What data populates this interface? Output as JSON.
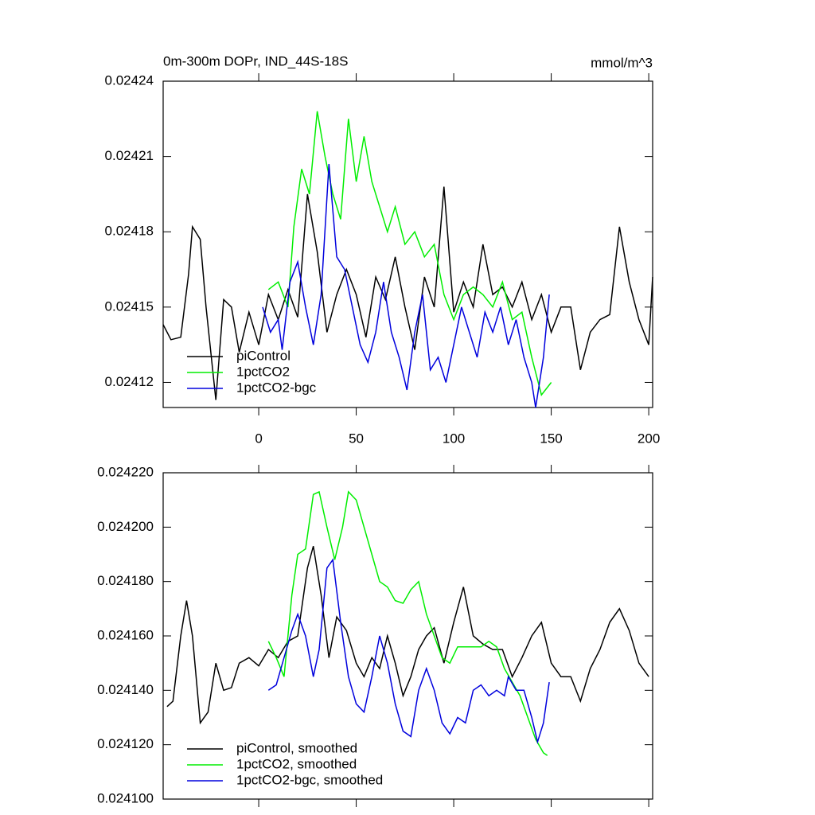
{
  "chart_data": [
    {
      "type": "line",
      "title": "0m-300m DOPr, IND_44S-18S",
      "units": "mmol/m^3",
      "xlim": [
        -49,
        202
      ],
      "xticks": [
        0,
        50,
        100,
        150,
        200
      ],
      "ylim": [
        0.02411,
        0.02424
      ],
      "yticks": [
        0.02412,
        0.02415,
        0.02418,
        0.02421,
        0.02424
      ],
      "legend": "lower left",
      "series": [
        {
          "name": "piControl",
          "color": "#000000",
          "x": [
            -49,
            -45,
            -40,
            -36,
            -34,
            -30,
            -27,
            -22,
            -18,
            -14,
            -10,
            -5,
            0,
            5,
            10,
            15,
            20,
            25,
            30,
            35,
            40,
            45,
            50,
            55,
            60,
            65,
            70,
            75,
            80,
            85,
            90,
            95,
            100,
            105,
            110,
            115,
            120,
            125,
            130,
            135,
            140,
            145,
            150,
            155,
            160,
            165,
            170,
            175,
            180,
            185,
            190,
            195,
            200,
            202
          ],
          "values": [
            0.024143,
            0.024137,
            0.024138,
            0.024163,
            0.024182,
            0.024177,
            0.02415,
            0.024113,
            0.024153,
            0.02415,
            0.024132,
            0.024148,
            0.024135,
            0.024155,
            0.024145,
            0.024157,
            0.024146,
            0.024195,
            0.024172,
            0.02414,
            0.024155,
            0.024165,
            0.024155,
            0.024138,
            0.024162,
            0.024153,
            0.02417,
            0.02415,
            0.024133,
            0.024162,
            0.02415,
            0.024198,
            0.024148,
            0.02416,
            0.02415,
            0.024175,
            0.024155,
            0.024158,
            0.02415,
            0.02416,
            0.024145,
            0.024155,
            0.02414,
            0.02415,
            0.02415,
            0.024125,
            0.02414,
            0.024145,
            0.024147,
            0.024182,
            0.02416,
            0.024145,
            0.024135,
            0.024162
          ]
        },
        {
          "name": "1pctCO2",
          "color": "#00ee00",
          "x": [
            5,
            10,
            15,
            18,
            22,
            26,
            30,
            34,
            38,
            42,
            46,
            50,
            54,
            58,
            62,
            66,
            70,
            75,
            80,
            85,
            90,
            95,
            100,
            105,
            110,
            115,
            120,
            125,
            130,
            135,
            140,
            145,
            150
          ],
          "values": [
            0.024157,
            0.02416,
            0.02415,
            0.024182,
            0.024205,
            0.024195,
            0.024228,
            0.02421,
            0.024195,
            0.024185,
            0.024225,
            0.0242,
            0.024218,
            0.0242,
            0.02419,
            0.02418,
            0.02419,
            0.024175,
            0.02418,
            0.02417,
            0.024175,
            0.024155,
            0.024145,
            0.024155,
            0.024158,
            0.024155,
            0.02415,
            0.02416,
            0.024145,
            0.024148,
            0.02413,
            0.024115,
            0.02412
          ]
        },
        {
          "name": "1pctCO2-bgc",
          "color": "#0000dd",
          "x": [
            2,
            6,
            10,
            12,
            16,
            20,
            24,
            28,
            32,
            36,
            40,
            44,
            48,
            52,
            56,
            60,
            64,
            68,
            72,
            76,
            80,
            84,
            88,
            92,
            96,
            100,
            104,
            108,
            112,
            116,
            120,
            124,
            128,
            132,
            136,
            140,
            142,
            146,
            149
          ],
          "values": [
            0.02415,
            0.02414,
            0.024145,
            0.024133,
            0.02416,
            0.024168,
            0.02415,
            0.024135,
            0.024155,
            0.024207,
            0.02417,
            0.024165,
            0.02415,
            0.024135,
            0.024128,
            0.02414,
            0.02416,
            0.02414,
            0.02413,
            0.024117,
            0.02414,
            0.024155,
            0.024125,
            0.02413,
            0.02412,
            0.024135,
            0.02415,
            0.02414,
            0.02413,
            0.024148,
            0.02414,
            0.02415,
            0.024135,
            0.024145,
            0.02413,
            0.02412,
            0.02411,
            0.02413,
            0.024155
          ]
        }
      ]
    },
    {
      "type": "line",
      "xlim": [
        -49,
        202
      ],
      "xticks": [
        0,
        50,
        100,
        150,
        200
      ],
      "ylim": [
        0.0241,
        0.02422
      ],
      "yticks": [
        {
          "value": 0.0241,
          "label": "0.024100"
        },
        {
          "value": 0.02412,
          "label": "0.024120"
        },
        {
          "value": 0.02414,
          "label": "0.024140"
        },
        {
          "value": 0.02416,
          "label": "0.024160"
        },
        {
          "value": 0.02418,
          "label": "0.024180"
        },
        {
          "value": 0.0242,
          "label": "0.024200"
        },
        {
          "value": 0.02422,
          "label": "0.024220"
        }
      ],
      "legend": "lower left",
      "series": [
        {
          "name": "piControl, smoothed",
          "color": "#000000",
          "x": [
            -47,
            -44,
            -40,
            -37,
            -34,
            -30,
            -26,
            -22,
            -18,
            -14,
            -10,
            -5,
            0,
            5,
            10,
            15,
            20,
            25,
            28,
            32,
            36,
            40,
            45,
            50,
            54,
            58,
            62,
            66,
            70,
            74,
            78,
            82,
            86,
            90,
            95,
            100,
            105,
            110,
            115,
            120,
            125,
            130,
            135,
            140,
            145,
            150,
            155,
            160,
            165,
            170,
            175,
            180,
            185,
            190,
            195,
            200
          ],
          "values": [
            0.024134,
            0.024136,
            0.02416,
            0.024173,
            0.02416,
            0.024128,
            0.024132,
            0.02415,
            0.02414,
            0.024141,
            0.02415,
            0.024152,
            0.024149,
            0.024155,
            0.024152,
            0.024158,
            0.02416,
            0.024185,
            0.024193,
            0.024175,
            0.024152,
            0.024167,
            0.024162,
            0.02415,
            0.024145,
            0.024152,
            0.024148,
            0.02416,
            0.02415,
            0.024138,
            0.024145,
            0.024155,
            0.02416,
            0.024163,
            0.02415,
            0.024165,
            0.024178,
            0.02416,
            0.024157,
            0.024155,
            0.024155,
            0.024145,
            0.024152,
            0.02416,
            0.024165,
            0.02415,
            0.024145,
            0.024145,
            0.024136,
            0.024148,
            0.024155,
            0.024165,
            0.02417,
            0.024162,
            0.02415,
            0.024145
          ]
        },
        {
          "name": "1pctCO2, smoothed",
          "color": "#00ee00",
          "x": [
            5,
            9,
            13,
            17,
            20,
            24,
            28,
            31,
            35,
            39,
            43,
            46,
            50,
            54,
            58,
            62,
            66,
            70,
            74,
            78,
            82,
            86,
            90,
            94,
            98,
            102,
            108,
            114,
            118,
            122,
            126,
            130,
            134,
            138,
            142,
            146,
            148
          ],
          "values": [
            0.024158,
            0.024152,
            0.024145,
            0.024175,
            0.02419,
            0.024192,
            0.024212,
            0.024213,
            0.0242,
            0.024188,
            0.0242,
            0.024213,
            0.02421,
            0.0242,
            0.02419,
            0.02418,
            0.024178,
            0.024173,
            0.024172,
            0.024177,
            0.02418,
            0.024168,
            0.02416,
            0.024152,
            0.02415,
            0.024156,
            0.024156,
            0.024156,
            0.024158,
            0.024156,
            0.024148,
            0.024143,
            0.024138,
            0.02413,
            0.024122,
            0.024117,
            0.024116
          ]
        },
        {
          "name": "1pctCO2-bgc, smoothed",
          "color": "#0000dd",
          "x": [
            5,
            9,
            13,
            17,
            20,
            24,
            28,
            31,
            35,
            38,
            42,
            46,
            50,
            54,
            58,
            62,
            66,
            70,
            74,
            78,
            82,
            86,
            90,
            94,
            98,
            102,
            106,
            110,
            114,
            118,
            122,
            126,
            128,
            132,
            136,
            140,
            143,
            146,
            149
          ],
          "values": [
            0.02414,
            0.024142,
            0.024152,
            0.024162,
            0.024168,
            0.02416,
            0.024145,
            0.024155,
            0.024185,
            0.024188,
            0.024165,
            0.024145,
            0.024135,
            0.024132,
            0.024145,
            0.02416,
            0.02415,
            0.024135,
            0.024125,
            0.024123,
            0.02414,
            0.024148,
            0.02414,
            0.024128,
            0.024124,
            0.02413,
            0.024128,
            0.02414,
            0.024142,
            0.024138,
            0.02414,
            0.024138,
            0.024145,
            0.02414,
            0.02414,
            0.02413,
            0.024121,
            0.024128,
            0.024143
          ]
        }
      ]
    }
  ]
}
